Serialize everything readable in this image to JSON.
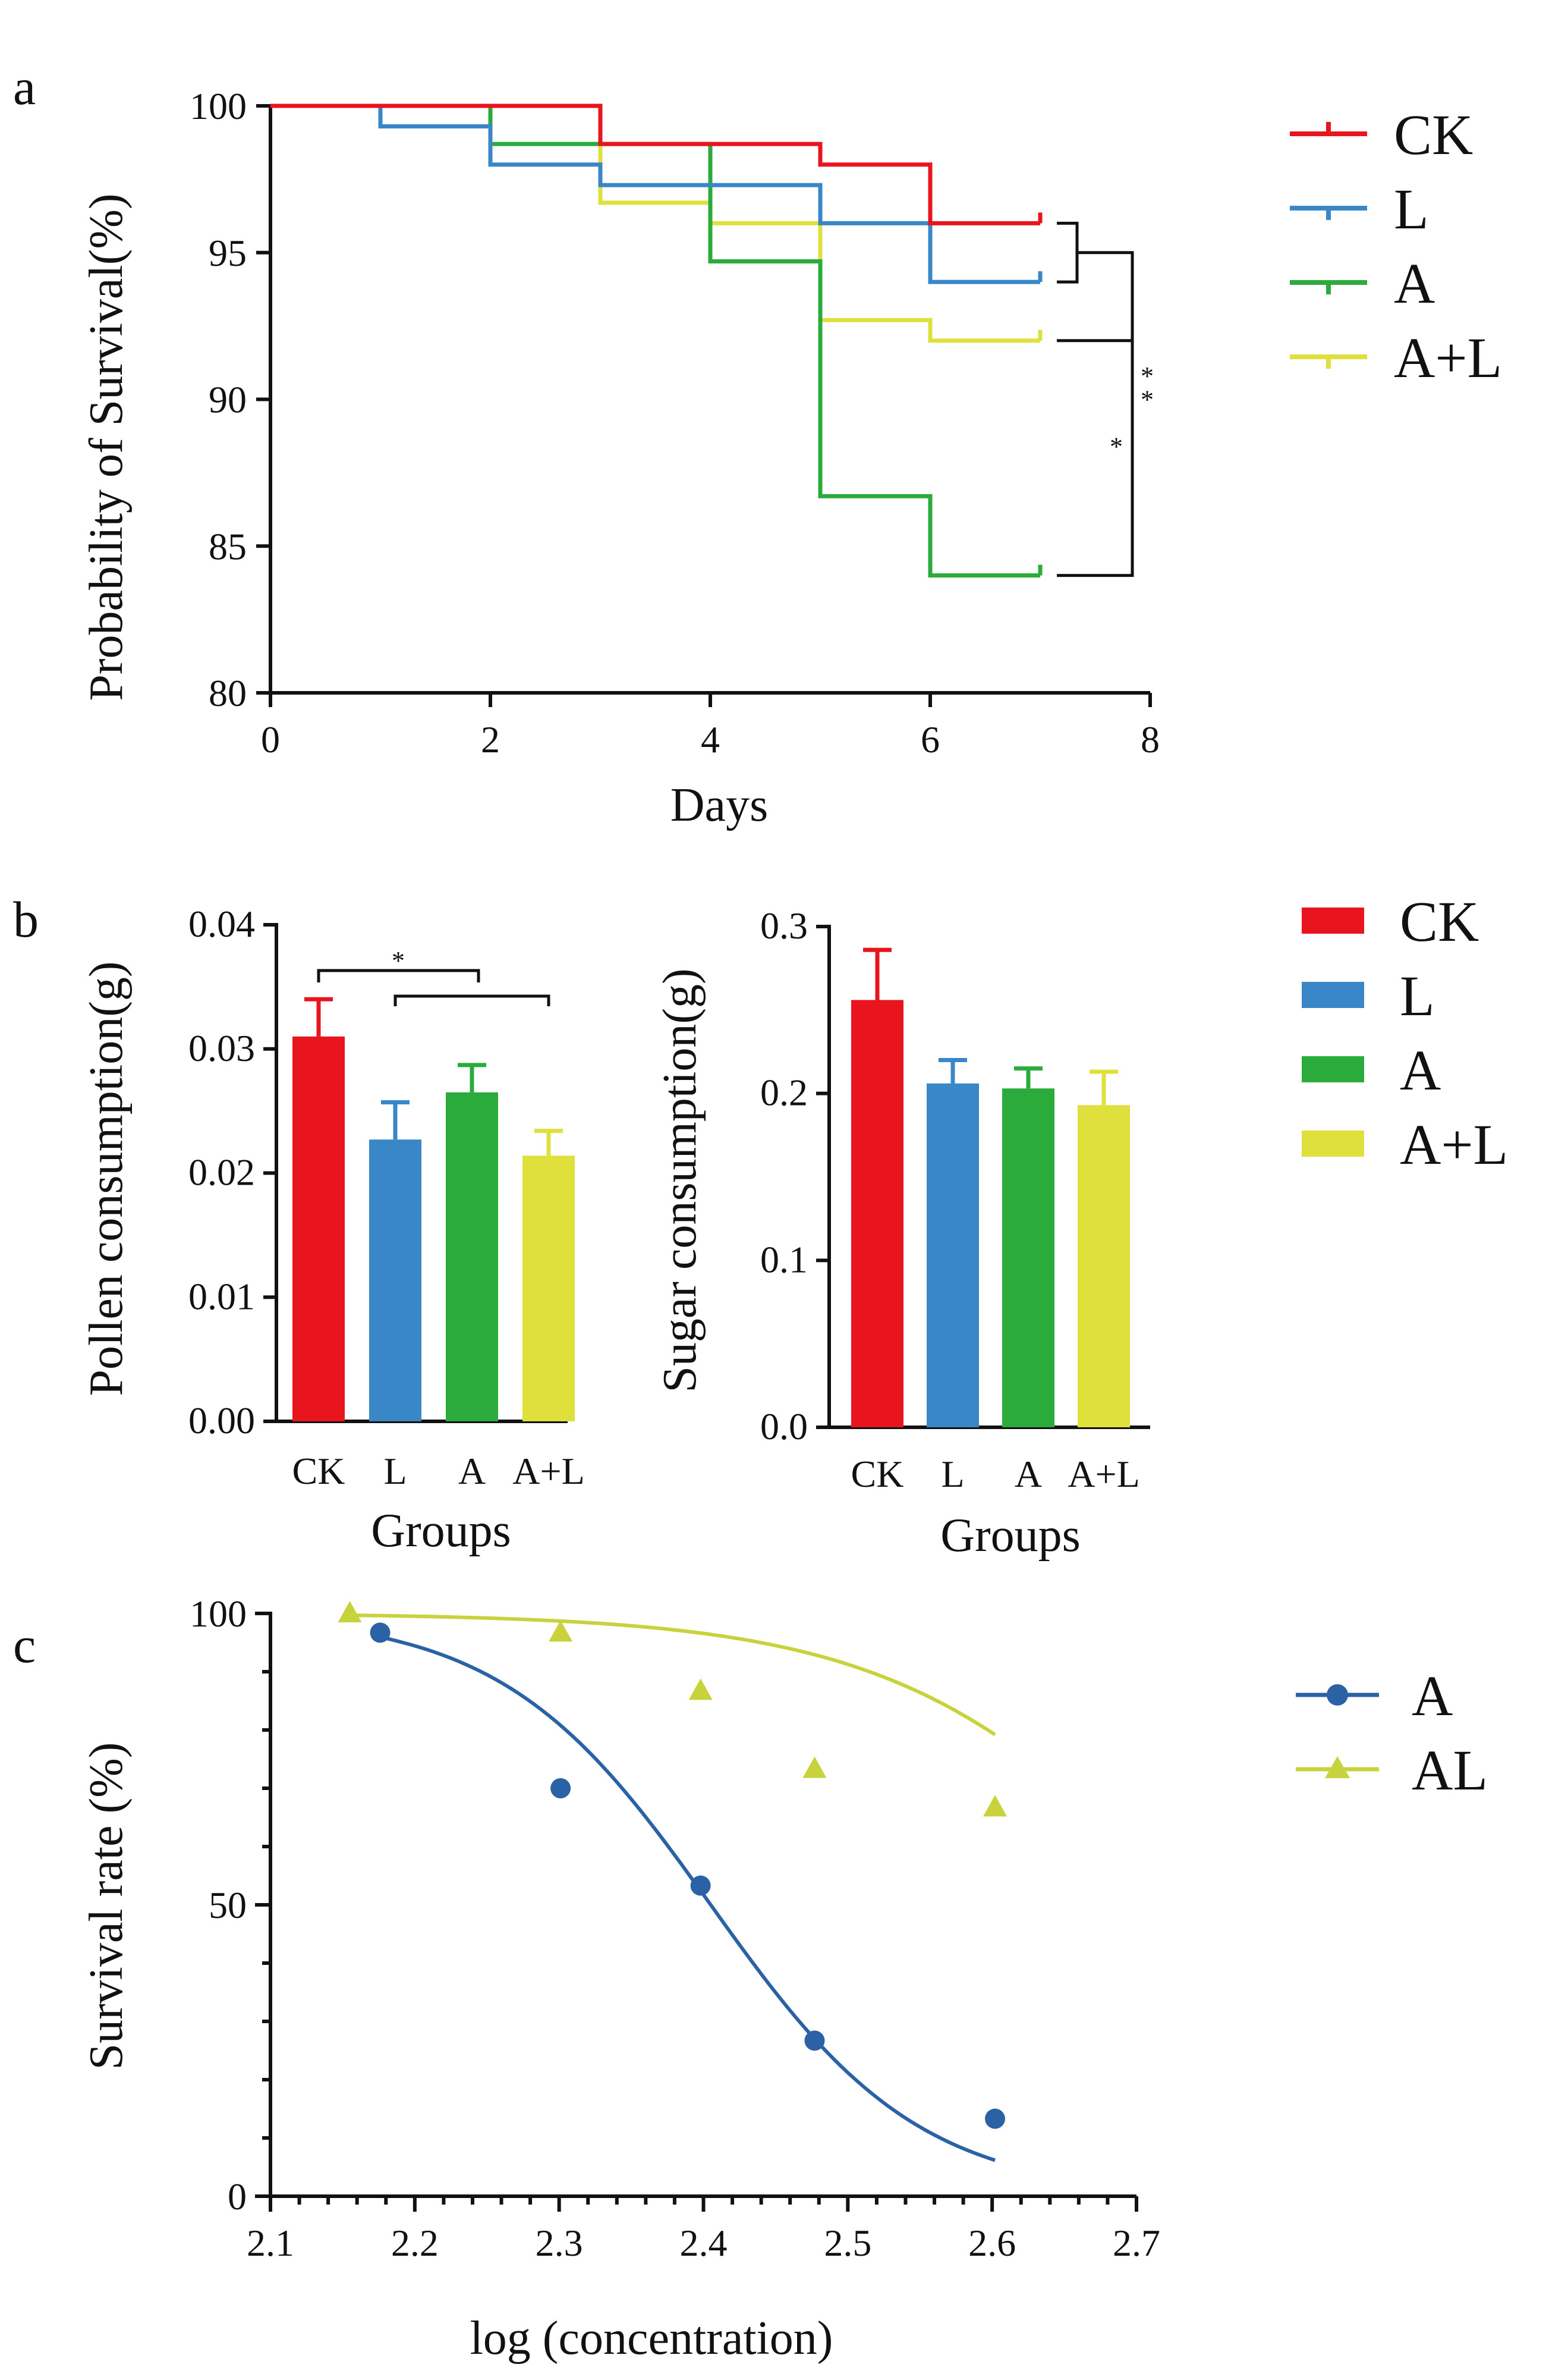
{
  "chart_data": [
    {
      "panel": "a",
      "type": "line",
      "xlabel": "Days",
      "ylabel": "Probability of Survival(%)",
      "xlim": [
        0,
        8
      ],
      "ylim": [
        80,
        100
      ],
      "xticks": [
        0,
        2,
        4,
        6,
        8
      ],
      "yticks": [
        80,
        85,
        90,
        95,
        100
      ],
      "legend_position": "right",
      "series": [
        {
          "name": "CK",
          "color": "#e8141e",
          "x": [
            0,
            1,
            2,
            3,
            4,
            5,
            6,
            7
          ],
          "y": [
            100,
            100,
            100,
            98.7,
            98.7,
            98,
            96,
            96
          ]
        },
        {
          "name": "L",
          "color": "#3a87c8",
          "x": [
            0,
            1,
            2,
            3,
            4,
            5,
            6,
            7
          ],
          "y": [
            100,
            99.3,
            98,
            97.3,
            97.3,
            96,
            94,
            94
          ]
        },
        {
          "name": "A",
          "color": "#2bab3c",
          "x": [
            0,
            1,
            2,
            3,
            4,
            5,
            6,
            7
          ],
          "y": [
            100,
            100,
            98.7,
            98.7,
            94.7,
            86.7,
            84,
            84
          ]
        },
        {
          "name": "A+L",
          "color": "#e0e03c",
          "x": [
            0,
            1,
            2,
            3,
            4,
            5,
            6,
            7
          ],
          "y": [
            100,
            100,
            100,
            96.7,
            96,
            92.7,
            92,
            92
          ]
        }
      ],
      "significance": [
        {
          "label": "",
          "note": "bracket CK vs L"
        },
        {
          "label": "*",
          "note": "A+L vs A"
        },
        {
          "label": "**",
          "note": "CK/L vs A"
        }
      ]
    },
    {
      "panel": "b",
      "type": "bar",
      "xlabel": "Groups",
      "ylabel": "Pollen consumption(g)",
      "categories": [
        "CK",
        "L",
        "A",
        "A+L"
      ],
      "values": [
        0.031,
        0.0227,
        0.0265,
        0.0214
      ],
      "errors": [
        0.003,
        0.003,
        0.0022,
        0.002
      ],
      "colors": [
        "#e8141e",
        "#3a87c8",
        "#2bab3c",
        "#e0e03c"
      ],
      "ylim": [
        0,
        0.04
      ],
      "yticks": [
        "0.00",
        "0.01",
        "0.02",
        "0.03",
        "0.04"
      ],
      "significance": "*"
    },
    {
      "panel": "b",
      "type": "bar",
      "xlabel": "Groups",
      "ylabel": "Sugar consumption(g)",
      "categories": [
        "CK",
        "L",
        "A",
        "A+L"
      ],
      "values": [
        0.256,
        0.206,
        0.203,
        0.193
      ],
      "errors": [
        0.03,
        0.014,
        0.012,
        0.02
      ],
      "colors": [
        "#e8141e",
        "#3a87c8",
        "#2bab3c",
        "#e0e03c"
      ],
      "ylim": [
        0,
        0.3
      ],
      "yticks": [
        "0.0",
        "0.1",
        "0.2",
        "0.3"
      ]
    },
    {
      "panel": "c",
      "type": "scatter",
      "xlabel": "log (concentration)",
      "ylabel": "Survival rate (%)",
      "xlim": [
        2.1,
        2.7
      ],
      "ylim": [
        0,
        100
      ],
      "xticks": [
        "2.1",
        "2.2",
        "2.3",
        "2.4",
        "2.5",
        "2.6",
        "2.7"
      ],
      "yticks": [
        "0",
        "50",
        "100"
      ],
      "series": [
        {
          "name": "A",
          "color": "#2b62a6",
          "marker": "circle",
          "x": [
            2.176,
            2.301,
            2.398,
            2.477,
            2.602
          ],
          "y": [
            96.7,
            70,
            53.3,
            26.7,
            13.3
          ],
          "fit_x": [
            2.176,
            2.602
          ],
          "fit": {
            "top": 100,
            "bottom": 0,
            "log_ec50": 2.405,
            "hill": -6
          }
        },
        {
          "name": "AL",
          "color": "#c8d23c",
          "marker": "triangle",
          "x": [
            2.155,
            2.301,
            2.398,
            2.477,
            2.602
          ],
          "y": [
            100,
            96.7,
            86.7,
            73.3,
            66.7
          ],
          "fit_x": [
            2.155,
            2.602
          ],
          "fit": {
            "top": 100,
            "bottom": 0,
            "log_ec50": 2.737,
            "hill": -4.3
          }
        }
      ]
    }
  ],
  "panel_letters": {
    "a": "a",
    "b": "b",
    "c": "c"
  },
  "legends": {
    "a": [
      "CK",
      "L",
      "A",
      "A+L"
    ],
    "b": [
      "CK",
      "L",
      "A",
      "A+L"
    ],
    "c": [
      "A",
      "AL"
    ]
  }
}
